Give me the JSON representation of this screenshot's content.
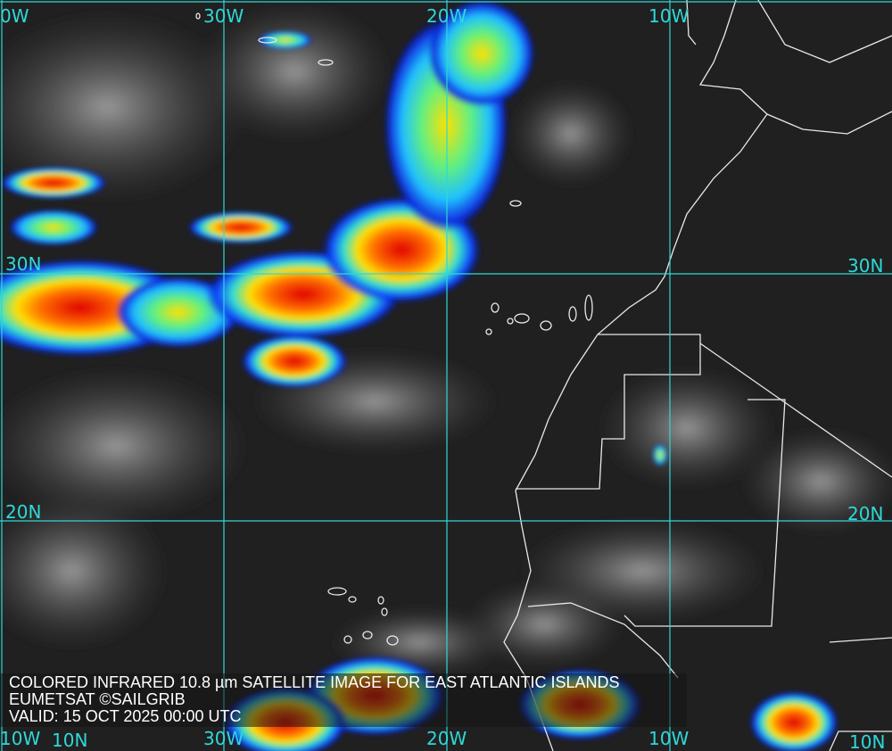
{
  "caption": {
    "line1": "COLORED INFRARED 10.8 µm SATELLITE IMAGE FOR EAST ATLANTIC ISLANDS",
    "line2": "EUMETSAT ©SAILGRIB",
    "line3": "VALID:  15 OCT 2025 00:00 UTC"
  },
  "grid_labels": {
    "top": [
      "0W",
      "30W",
      "20W",
      "10W"
    ],
    "left": [
      "30N",
      "20N"
    ],
    "right": [
      "30N",
      "20N"
    ],
    "bottom": [
      "10W",
      "10N",
      "30W",
      "20W",
      "10W",
      "10N"
    ]
  },
  "colors": {
    "grid": "#2fd8d8",
    "coast": "#e8e8e8",
    "cold_top": "#e00000",
    "mid": "#ffe000",
    "warm_edge": "#0020e0"
  }
}
